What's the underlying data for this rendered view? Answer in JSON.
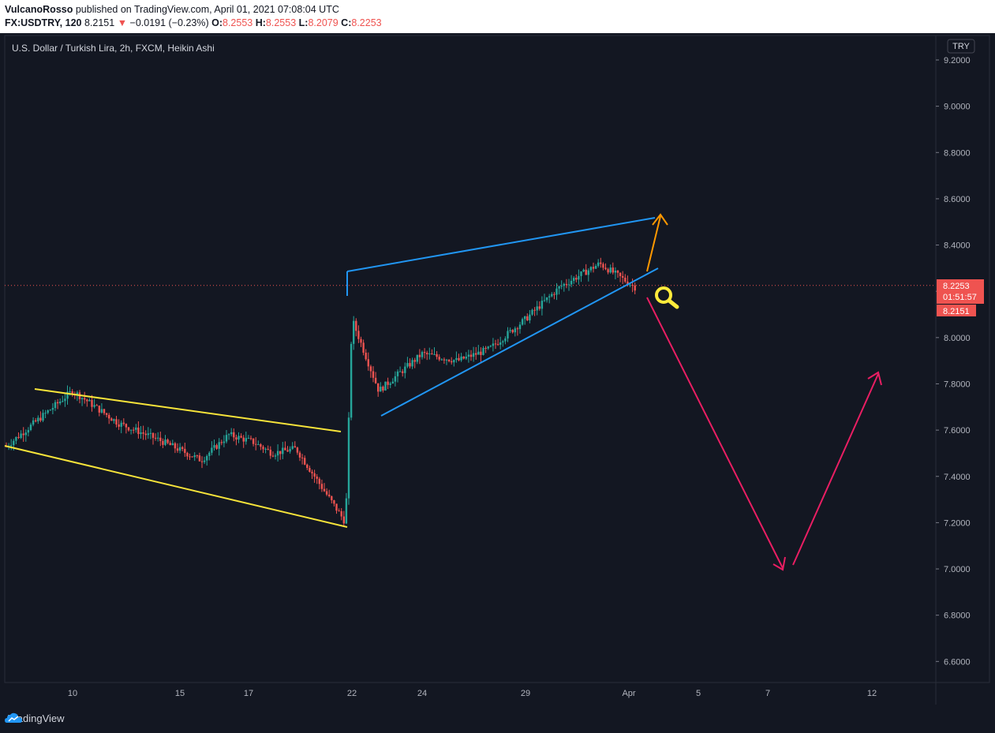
{
  "header": {
    "author": "VulcanoRosso",
    "published_text": "published on TradingView.com, April 01, 2021 07:08:04 UTC",
    "symbol": "FX:USDTRY, 120",
    "last": "8.2151",
    "change_arrow": "▼",
    "change": "−0.0191 (−0.23%)",
    "o_label": "O:",
    "o_value": "8.2553",
    "h_label": "H:",
    "h_value": "8.2553",
    "l_label": "L:",
    "l_value": "8.2079",
    "c_label": "C:",
    "c_value": "8.2253"
  },
  "chart": {
    "legend": "U.S. Dollar / Turkish Lira, 2h, FXCM, Heikin Ashi",
    "currency_button": "TRY",
    "price_badge_top": "8.2253",
    "price_badge_timer": "01:51:57",
    "price_badge_bottom": "8.2151",
    "footer_brand": "TradingView"
  },
  "colors": {
    "background": "#131722",
    "up": "#26a69a",
    "down": "#ef5350",
    "channel_yellow": "#f7e43a",
    "wedge_blue": "#2196f3",
    "arrow_orange": "#ff9800",
    "arrow_pink": "#e91e63",
    "magnifier_yellow": "#ffeb3b"
  },
  "chart_data": {
    "type": "candlestick",
    "style": "Heikin Ashi",
    "y_ticks": [
      "9.2000",
      "9.0000",
      "8.8000",
      "8.6000",
      "8.4000",
      "8.2000",
      "8.0000",
      "7.8000",
      "7.6000",
      "7.4000",
      "7.2000",
      "7.0000",
      "6.8000",
      "6.6000"
    ],
    "x_ticks": [
      "10",
      "15",
      "17",
      "22",
      "24",
      "29",
      "Apr",
      "5",
      "7",
      "12"
    ],
    "ylim": [
      6.55,
      9.25
    ],
    "current_price": 8.2253,
    "series": [
      {
        "date": "Mar 8",
        "close": 7.53
      },
      {
        "date": "Mar 9",
        "close": 7.77
      },
      {
        "date": "Mar 10",
        "close": 7.63
      },
      {
        "date": "Mar 11",
        "close": 7.56
      },
      {
        "date": "Mar 12",
        "close": 7.47
      },
      {
        "date": "Mar 15",
        "close": 7.58
      },
      {
        "date": "Mar 16",
        "close": 7.55
      },
      {
        "date": "Mar 17",
        "close": 7.5
      },
      {
        "date": "Mar 18",
        "close": 7.52
      },
      {
        "date": "Mar 19",
        "close": 7.2
      },
      {
        "date": "Mar 22",
        "close": 8.08
      },
      {
        "date": "Mar 23",
        "close": 7.77
      },
      {
        "date": "Mar 24",
        "close": 7.93
      },
      {
        "date": "Mar 25",
        "close": 7.9
      },
      {
        "date": "Mar 26",
        "close": 7.95
      },
      {
        "date": "Mar 29",
        "close": 8.08
      },
      {
        "date": "Mar 30",
        "close": 8.22
      },
      {
        "date": "Mar 31",
        "close": 8.32
      },
      {
        "date": "Apr 1",
        "close": 8.2151
      }
    ]
  }
}
